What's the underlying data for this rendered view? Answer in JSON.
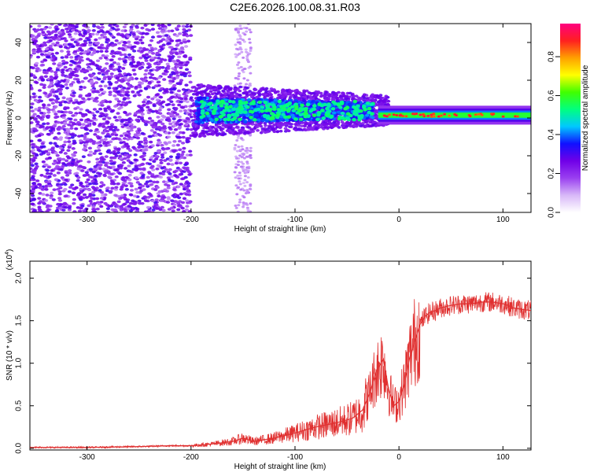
{
  "title": "C2E6.2026.100.08.31.R03",
  "colors": {
    "spectrum_line": "#e03030",
    "colormap": [
      "#ffffff",
      "#d8b8f8",
      "#9a40f0",
      "#7000e8",
      "#1010ff",
      "#00c8ff",
      "#00ff80",
      "#40ff00",
      "#ffff00",
      "#ffa000",
      "#ff2020",
      "#ff0080"
    ]
  },
  "chart_data": [
    {
      "type": "heatmap",
      "xlabel": "Height of straight line (km)",
      "ylabel": "Frequency (Hz)",
      "xlim": [
        -355,
        127
      ],
      "ylim": [
        -50,
        50
      ],
      "xticks": [
        -300,
        -200,
        -100,
        0,
        100
      ],
      "xtick_labels": [
        "-300",
        "-200",
        "-100",
        "0",
        "100"
      ],
      "yticks": [
        -40,
        -20,
        0,
        20,
        40
      ],
      "ytick_labels": [
        "-40",
        "-20",
        "0",
        "20",
        "40"
      ],
      "colorbar": {
        "label": "Normalized spectral amplitude",
        "range": [
          0,
          0.97
        ],
        "ticks": [
          0.0,
          0.2,
          0.4,
          0.6,
          0.8
        ],
        "tick_labels": [
          "0.0",
          "0.2",
          "0.4",
          "0.6",
          "0.8"
        ]
      },
      "grid": false
    },
    {
      "type": "line",
      "xlabel": "Height of straight line (km)",
      "ylabel": "SNR (10 * v/v)",
      "y_multiplier": "(x10",
      "y_multiplier_exp": "4",
      "xlim": [
        -355,
        127
      ],
      "ylim": [
        -0.02,
        2.2
      ],
      "xticks": [
        -300,
        -200,
        -100,
        0,
        100
      ],
      "xtick_labels": [
        "-300",
        "-200",
        "-100",
        "0",
        "100"
      ],
      "yticks": [
        0.0,
        0.5,
        1.0,
        1.5,
        2.0
      ],
      "ytick_labels": [
        "0.0",
        "0.5",
        "1.0",
        "1.5",
        "2.0"
      ],
      "x": [
        -355,
        -300,
        -250,
        -220,
        -200,
        -180,
        -160,
        -150,
        -140,
        -120,
        -100,
        -80,
        -60,
        -45,
        -35,
        -28,
        -22,
        -15,
        -10,
        -5,
        0,
        5,
        10,
        15,
        20,
        25,
        30,
        35,
        40,
        50,
        60,
        70,
        80,
        90,
        100,
        105,
        110,
        115,
        120,
        127
      ],
      "y": [
        0.01,
        0.01,
        0.02,
        0.03,
        0.03,
        0.05,
        0.08,
        0.12,
        0.08,
        0.12,
        0.18,
        0.25,
        0.3,
        0.35,
        0.45,
        0.65,
        0.9,
        1.05,
        0.7,
        0.5,
        0.55,
        0.75,
        1.05,
        1.25,
        1.45,
        1.55,
        1.6,
        1.62,
        1.65,
        1.68,
        1.7,
        1.7,
        1.72,
        1.72,
        1.7,
        1.68,
        1.65,
        1.64,
        1.63,
        1.62
      ],
      "grid": false
    }
  ]
}
